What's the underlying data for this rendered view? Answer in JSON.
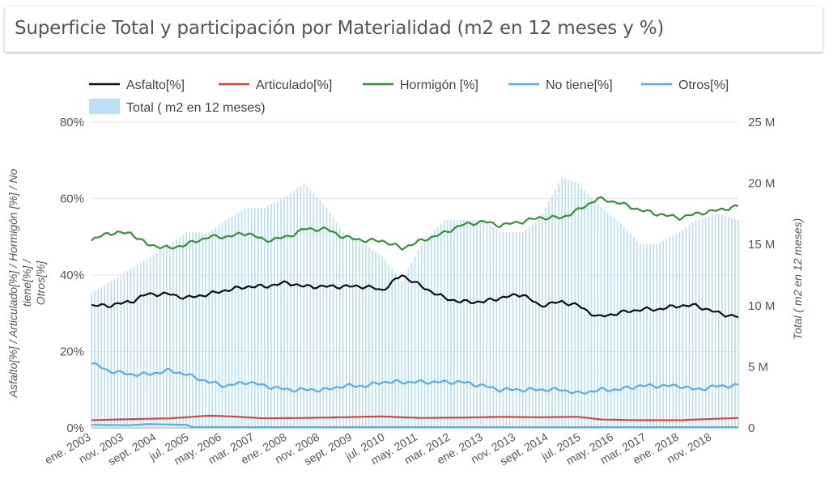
{
  "title": "Superficie Total y participación por Materialidad (m2 en 12 meses y %)",
  "chart_data": {
    "type": "line+bar",
    "xlabel": "",
    "ylabel_left": "Asfalto[%] / Articulado[%] / Hormigón [%] / No tiene[%] / Otros[%]",
    "ylabel_right": "Total ( m2 en 12 meses)",
    "ylim_left": [
      0,
      80
    ],
    "ylim_right": [
      0,
      25
    ],
    "yticks_left": [
      "0%",
      "20%",
      "40%",
      "60%",
      "80%"
    ],
    "yticks_right": [
      "0",
      "5 M",
      "10 M",
      "15 M",
      "20 M",
      "25 M"
    ],
    "x_tick_labels": [
      "ene. 2003",
      "nov. 2003",
      "sept. 2004",
      "jul. 2005",
      "may. 2006",
      "mar. 2007",
      "ene. 2008",
      "nov. 2008",
      "sept. 2009",
      "jul. 2010",
      "may. 2011",
      "mar. 2012",
      "ene. 2013",
      "nov. 2013",
      "sept. 2014",
      "jul. 2015",
      "may. 2016",
      "mar. 2017",
      "ene. 2018",
      "nov. 2018"
    ],
    "x_start": "2003-01",
    "x_end": "2019-07",
    "legend_position": "top",
    "grid": true,
    "series": [
      {
        "name": "Asfalto[%]",
        "kind": "line",
        "axis": "left",
        "color": "#111111",
        "points": [
          [
            "2003-01",
            32
          ],
          [
            "2003-06",
            32
          ],
          [
            "2004-01",
            33
          ],
          [
            "2004-06",
            35
          ],
          [
            "2005-01",
            35
          ],
          [
            "2005-06",
            34
          ],
          [
            "2006-01",
            35
          ],
          [
            "2006-06",
            36
          ],
          [
            "2007-01",
            37
          ],
          [
            "2007-06",
            37
          ],
          [
            "2008-01",
            38
          ],
          [
            "2008-06",
            37
          ],
          [
            "2009-01",
            37
          ],
          [
            "2009-06",
            37
          ],
          [
            "2010-01",
            37
          ],
          [
            "2010-06",
            36
          ],
          [
            "2010-12",
            40
          ],
          [
            "2011-06",
            37
          ],
          [
            "2012-01",
            34
          ],
          [
            "2012-06",
            33
          ],
          [
            "2013-01",
            33
          ],
          [
            "2013-06",
            34
          ],
          [
            "2014-01",
            35
          ],
          [
            "2014-06",
            32
          ],
          [
            "2015-01",
            33
          ],
          [
            "2015-06",
            32
          ],
          [
            "2015-12",
            29
          ],
          [
            "2016-06",
            30
          ],
          [
            "2017-01",
            31
          ],
          [
            "2017-06",
            31
          ],
          [
            "2018-01",
            32
          ],
          [
            "2018-06",
            32
          ],
          [
            "2019-01",
            30
          ],
          [
            "2019-07",
            29
          ]
        ]
      },
      {
        "name": "Articulado[%]",
        "kind": "line",
        "axis": "left",
        "color": "#d2473c",
        "points": [
          [
            "2003-01",
            2
          ],
          [
            "2004-01",
            2.3
          ],
          [
            "2005-01",
            2.5
          ],
          [
            "2006-01",
            3.2
          ],
          [
            "2006-08",
            3
          ],
          [
            "2007-06",
            2.5
          ],
          [
            "2008-06",
            2.6
          ],
          [
            "2009-06",
            2.8
          ],
          [
            "2010-06",
            3
          ],
          [
            "2011-06",
            2.6
          ],
          [
            "2012-06",
            2.7
          ],
          [
            "2013-06",
            2.9
          ],
          [
            "2014-06",
            2.8
          ],
          [
            "2015-06",
            2.9
          ],
          [
            "2016-01",
            2.2
          ],
          [
            "2017-01",
            2
          ],
          [
            "2018-01",
            2
          ],
          [
            "2018-06",
            2.2
          ],
          [
            "2019-07",
            2.6
          ]
        ]
      },
      {
        "name": "Hormigón [%]",
        "kind": "line",
        "axis": "left",
        "color": "#3a8f3a",
        "points": [
          [
            "2003-01",
            49
          ],
          [
            "2003-06",
            51
          ],
          [
            "2004-01",
            51
          ],
          [
            "2004-06",
            48
          ],
          [
            "2005-01",
            47
          ],
          [
            "2005-06",
            48
          ],
          [
            "2006-01",
            50
          ],
          [
            "2006-06",
            50
          ],
          [
            "2007-01",
            51
          ],
          [
            "2007-06",
            49
          ],
          [
            "2008-01",
            50
          ],
          [
            "2008-06",
            52
          ],
          [
            "2009-01",
            52
          ],
          [
            "2009-06",
            50
          ],
          [
            "2010-01",
            49
          ],
          [
            "2010-06",
            49
          ],
          [
            "2010-12",
            47
          ],
          [
            "2011-06",
            49
          ],
          [
            "2012-01",
            51
          ],
          [
            "2012-06",
            53
          ],
          [
            "2013-01",
            54
          ],
          [
            "2013-06",
            53
          ],
          [
            "2014-01",
            54
          ],
          [
            "2014-06",
            55
          ],
          [
            "2015-01",
            55
          ],
          [
            "2015-06",
            57
          ],
          [
            "2015-12",
            60
          ],
          [
            "2016-06",
            59
          ],
          [
            "2017-01",
            57
          ],
          [
            "2017-06",
            56
          ],
          [
            "2018-01",
            55
          ],
          [
            "2018-06",
            56
          ],
          [
            "2019-01",
            57
          ],
          [
            "2019-07",
            58
          ]
        ]
      },
      {
        "name": "No tiene[%]",
        "kind": "line",
        "axis": "left",
        "color": "#5aaee5",
        "points": [
          [
            "2003-01",
            17
          ],
          [
            "2003-06",
            15
          ],
          [
            "2004-01",
            14
          ],
          [
            "2004-06",
            14
          ],
          [
            "2005-01",
            15
          ],
          [
            "2005-06",
            14
          ],
          [
            "2006-01",
            12
          ],
          [
            "2006-06",
            11
          ],
          [
            "2007-01",
            12
          ],
          [
            "2007-06",
            11
          ],
          [
            "2008-01",
            10
          ],
          [
            "2008-06",
            10
          ],
          [
            "2009-01",
            10
          ],
          [
            "2009-06",
            11
          ],
          [
            "2010-01",
            11
          ],
          [
            "2010-06",
            12
          ],
          [
            "2011-01",
            12
          ],
          [
            "2011-06",
            12
          ],
          [
            "2012-01",
            12
          ],
          [
            "2012-06",
            12
          ],
          [
            "2013-01",
            11
          ],
          [
            "2013-06",
            10
          ],
          [
            "2014-01",
            10
          ],
          [
            "2014-06",
            10
          ],
          [
            "2015-01",
            10
          ],
          [
            "2015-06",
            9
          ],
          [
            "2016-01",
            10
          ],
          [
            "2016-06",
            10
          ],
          [
            "2017-01",
            11
          ],
          [
            "2017-06",
            11
          ],
          [
            "2018-01",
            11
          ],
          [
            "2018-06",
            10
          ],
          [
            "2019-01",
            11
          ],
          [
            "2019-07",
            11
          ]
        ]
      },
      {
        "name": "Otros[%]",
        "kind": "line",
        "axis": "left",
        "color": "#5aaee5",
        "points": [
          [
            "2003-01",
            0.8
          ],
          [
            "2004-01",
            0.7
          ],
          [
            "2004-06",
            1
          ],
          [
            "2005-06",
            0.8
          ],
          [
            "2005-08",
            0.2
          ],
          [
            "2019-07",
            0.2
          ]
        ]
      },
      {
        "name": "Total ( m2 en 12 meses)",
        "kind": "bar",
        "axis": "right",
        "color": "#bcdff5",
        "points": [
          [
            "2003-01",
            11
          ],
          [
            "2004-01",
            13
          ],
          [
            "2005-01",
            15
          ],
          [
            "2005-06",
            16
          ],
          [
            "2006-01",
            16
          ],
          [
            "2006-06",
            17
          ],
          [
            "2007-01",
            18
          ],
          [
            "2007-06",
            18
          ],
          [
            "2008-01",
            19
          ],
          [
            "2008-06",
            20
          ],
          [
            "2009-01",
            18
          ],
          [
            "2009-06",
            16
          ],
          [
            "2010-01",
            15
          ],
          [
            "2010-06",
            14
          ],
          [
            "2010-12",
            12
          ],
          [
            "2011-06",
            15
          ],
          [
            "2012-01",
            17
          ],
          [
            "2012-06",
            17
          ],
          [
            "2013-01",
            17
          ],
          [
            "2013-06",
            16
          ],
          [
            "2014-01",
            16
          ],
          [
            "2014-06",
            17
          ],
          [
            "2015-01",
            20.5
          ],
          [
            "2015-06",
            20
          ],
          [
            "2016-01",
            18
          ],
          [
            "2016-06",
            17
          ],
          [
            "2017-01",
            15
          ],
          [
            "2017-06",
            15
          ],
          [
            "2018-01",
            16
          ],
          [
            "2018-06",
            17
          ],
          [
            "2019-01",
            17.5
          ],
          [
            "2019-07",
            17
          ]
        ]
      }
    ]
  }
}
